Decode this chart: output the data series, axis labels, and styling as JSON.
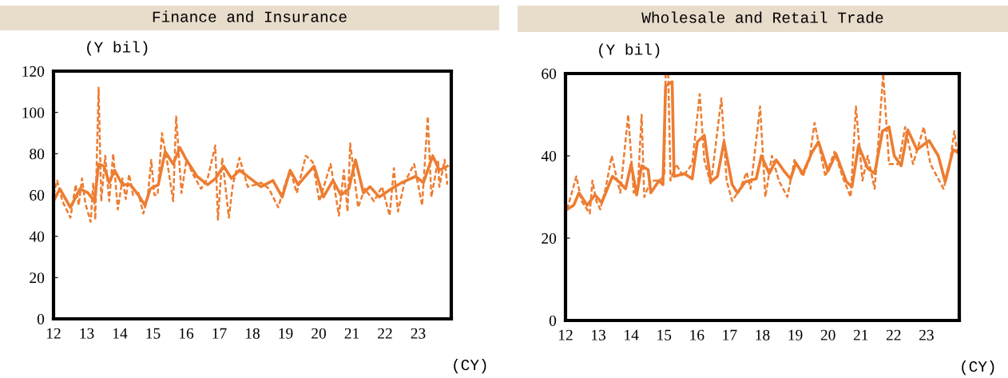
{
  "chart_data": [
    {
      "type": "line",
      "title": "Finance and Insurance",
      "ylabel": "(Y bil)",
      "xlabel": "(CY)",
      "xlim": [
        12,
        24
      ],
      "ylim": [
        0,
        120
      ],
      "xticks": [
        12,
        13,
        14,
        15,
        16,
        17,
        18,
        19,
        20,
        21,
        22,
        23
      ],
      "yticks": [
        0,
        20,
        40,
        60,
        80,
        100,
        120
      ],
      "series": [
        {
          "color": "#ed7d31",
          "line_style": "dashed",
          "x": [
            12.0,
            12.11,
            12.27,
            12.51,
            12.67,
            12.76,
            12.86,
            12.96,
            13.12,
            13.2,
            13.26,
            13.36,
            13.44,
            13.56,
            13.68,
            13.8,
            13.94,
            14.08,
            14.18,
            14.28,
            14.4,
            14.56,
            14.71,
            14.84,
            14.95,
            15.04,
            15.14,
            15.27,
            15.41,
            15.61,
            15.7,
            15.86,
            16.01,
            16.21,
            16.45,
            16.65,
            16.88,
            16.96,
            17.09,
            17.29,
            17.41,
            17.61,
            17.86,
            18.1,
            18.26,
            18.5,
            18.78,
            18.98,
            19.14,
            19.34,
            19.61,
            19.82,
            20.02,
            20.36,
            20.61,
            20.76,
            20.87,
            20.95,
            21.19,
            21.39,
            21.67,
            21.91,
            22.14,
            22.27,
            22.39,
            22.59,
            22.88,
            23.12,
            23.29,
            23.4,
            23.6,
            23.64,
            23.8,
            23.88
          ],
          "values": [
            60,
            67,
            57,
            49,
            65,
            55,
            68,
            56,
            47,
            66,
            48,
            112,
            57,
            79,
            57,
            80,
            53,
            68,
            58,
            70,
            60,
            61,
            51,
            59,
            77,
            60,
            60,
            90,
            78,
            57,
            98,
            61,
            77,
            70,
            63,
            68,
            84,
            48,
            78,
            49,
            65,
            78,
            64,
            65,
            66,
            63,
            54,
            65,
            72,
            61,
            79,
            76,
            57,
            75,
            50,
            72,
            52,
            85,
            54,
            63,
            57,
            64,
            50,
            73,
            52,
            66,
            75,
            55,
            98,
            59,
            77,
            64,
            77,
            65
          ]
        },
        {
          "color": "#ed7d31",
          "line_style": "solid",
          "x": [
            12.0,
            12.19,
            12.51,
            12.8,
            13.04,
            13.24,
            13.36,
            13.52,
            13.68,
            13.84,
            14.08,
            14.32,
            14.56,
            14.76,
            14.92,
            15.16,
            15.37,
            15.61,
            15.81,
            16.01,
            16.33,
            16.65,
            16.89,
            17.13,
            17.37,
            17.61,
            17.94,
            18.26,
            18.62,
            18.9,
            19.14,
            19.38,
            19.86,
            20.14,
            20.43,
            20.67,
            20.91,
            21.11,
            21.35,
            21.55,
            21.83,
            22.19,
            22.51,
            22.92,
            23.16,
            23.44,
            23.64,
            23.88
          ],
          "values": [
            57,
            63,
            54,
            63,
            61,
            57,
            75,
            74,
            66,
            72,
            65,
            65,
            60,
            55,
            63,
            65,
            81,
            75,
            83,
            77,
            69,
            65,
            68,
            74,
            68,
            72,
            68,
            64,
            67,
            59,
            72,
            65,
            74,
            59,
            67,
            60,
            63,
            77,
            61,
            64,
            59,
            63,
            66,
            69,
            66,
            79,
            72,
            74
          ]
        }
      ]
    },
    {
      "type": "line",
      "title": "Wholesale and Retail Trade",
      "ylabel": "(Y bil)",
      "xlabel": "(CY)",
      "xlim": [
        12,
        24
      ],
      "ylim": [
        0,
        60
      ],
      "xticks": [
        12,
        13,
        14,
        15,
        16,
        17,
        18,
        19,
        20,
        21,
        22,
        23
      ],
      "yticks": [
        0,
        20,
        40,
        60
      ],
      "series": [
        {
          "color": "#ed7d31",
          "line_style": "dashed",
          "x": [
            12.05,
            12.33,
            12.49,
            12.74,
            12.82,
            12.94,
            13.06,
            13.22,
            13.41,
            13.55,
            13.67,
            13.91,
            14.08,
            14.2,
            14.32,
            14.4,
            14.6,
            14.85,
            15.01,
            15.05,
            15.13,
            15.2,
            15.37,
            15.58,
            15.86,
            16.09,
            16.23,
            16.43,
            16.75,
            16.91,
            17.08,
            17.32,
            17.52,
            17.64,
            17.93,
            18.09,
            18.29,
            18.5,
            18.76,
            18.98,
            19.23,
            19.43,
            19.59,
            19.92,
            20.2,
            20.44,
            20.69,
            20.85,
            21.05,
            21.21,
            21.42,
            21.54,
            21.68,
            21.86,
            22.15,
            22.35,
            22.59,
            22.92,
            23.12,
            23.52,
            23.69,
            23.85,
            23.93
          ],
          "values": [
            27,
            35,
            29,
            26,
            34,
            29,
            27,
            32,
            40,
            35,
            31,
            50,
            31,
            32,
            50,
            30,
            34,
            34,
            35,
            60,
            60,
            34,
            38,
            35,
            38,
            55,
            39,
            33,
            54,
            34,
            29,
            32,
            36,
            32,
            52,
            30,
            40,
            34,
            30,
            39,
            35,
            39,
            48,
            35,
            41,
            35,
            30,
            52,
            34,
            40,
            32,
            44,
            60,
            38,
            38,
            47,
            38,
            47,
            38,
            32,
            37,
            46,
            41
          ]
        },
        {
          "color": "#ed7d31",
          "line_style": "solid",
          "x": [
            12.05,
            12.25,
            12.41,
            12.66,
            12.9,
            13.1,
            13.43,
            13.63,
            13.83,
            14.0,
            14.17,
            14.32,
            14.52,
            14.6,
            14.85,
            14.97,
            15.05,
            15.25,
            15.31,
            15.62,
            15.86,
            16.02,
            16.23,
            16.43,
            16.63,
            16.83,
            17.08,
            17.24,
            17.48,
            17.81,
            17.97,
            18.21,
            18.42,
            18.66,
            18.86,
            19.02,
            19.23,
            19.51,
            19.71,
            20.0,
            20.24,
            20.56,
            20.73,
            20.93,
            21.21,
            21.42,
            21.66,
            21.86,
            22.02,
            22.23,
            22.43,
            22.71,
            23.08,
            23.36,
            23.57,
            23.81,
            23.95
          ],
          "values": [
            27,
            28,
            31,
            28,
            30.5,
            28.6,
            35,
            33.7,
            32,
            38,
            30.5,
            37.6,
            36.6,
            31,
            34,
            33,
            57,
            58,
            35,
            35.7,
            34.4,
            43.4,
            45,
            33.7,
            35,
            43.4,
            33,
            31,
            33.7,
            34.4,
            40,
            35.7,
            39,
            36.3,
            34.4,
            38.3,
            35.7,
            40.8,
            43.4,
            36.3,
            40.5,
            33.7,
            32.5,
            42.5,
            37,
            35.7,
            46,
            47,
            40,
            37.6,
            46.3,
            41.5,
            43.7,
            40,
            33.7,
            41.5,
            40.8
          ]
        }
      ]
    }
  ]
}
